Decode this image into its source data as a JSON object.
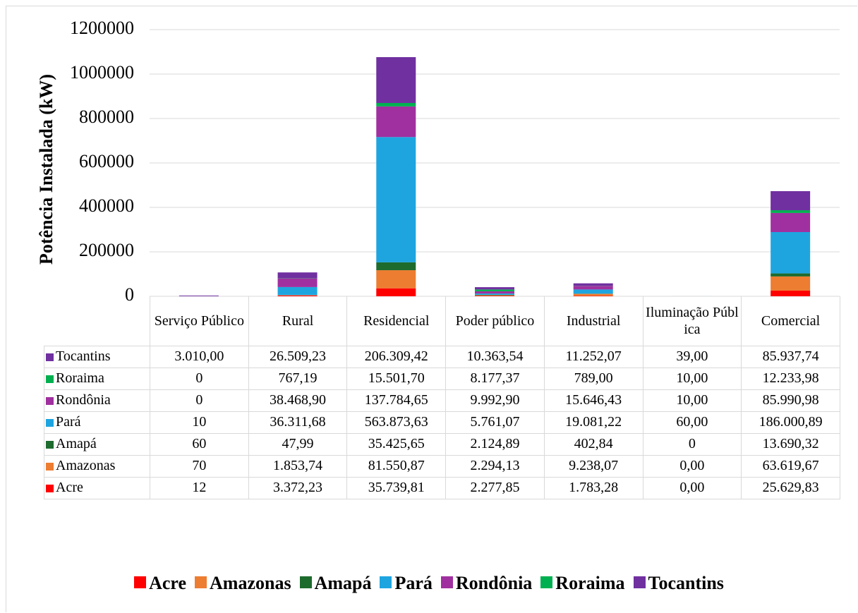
{
  "chart_data": {
    "type": "stacked_bar",
    "y_label": "Potência Instalada (kW)",
    "categories": [
      "Serviço Público",
      "Rural",
      "Residencial",
      "Poder público",
      "Industrial",
      "Iluminação Pública",
      "Comercial"
    ],
    "series": [
      {
        "name": "Acre",
        "color": "#ff0000",
        "values": [
          12,
          3372.23,
          35739.81,
          2277.85,
          1783.28,
          0,
          25629.83
        ],
        "value_labels": [
          "12",
          "3.372,23",
          "35.739,81",
          "2.277,85",
          "1.783,28",
          "0,00",
          "25.629,83"
        ]
      },
      {
        "name": "Amazonas",
        "color": "#ed7d31",
        "values": [
          70,
          1853.74,
          81550.87,
          2294.13,
          9238.07,
          0,
          63619.67
        ],
        "value_labels": [
          "70",
          "1.853,74",
          "81.550,87",
          "2.294,13",
          "9.238,07",
          "0,00",
          "63.619,67"
        ]
      },
      {
        "name": "Amapá",
        "color": "#1e6b2e",
        "values": [
          60,
          47.99,
          35425.65,
          2124.89,
          402.84,
          0,
          13690.32
        ],
        "value_labels": [
          "60",
          "47,99",
          "35.425,65",
          "2.124,89",
          "402,84",
          "0",
          "13.690,32"
        ]
      },
      {
        "name": "Pará",
        "color": "#1ea5e0",
        "values": [
          10,
          36311.68,
          563873.63,
          5761.07,
          19081.22,
          60,
          186000.89
        ],
        "value_labels": [
          "10",
          "36.311,68",
          "563.873,63",
          "5.761,07",
          "19.081,22",
          "60,00",
          "186.000,89"
        ]
      },
      {
        "name": "Rondônia",
        "color": "#a0309f",
        "values": [
          0,
          38468.9,
          137784.65,
          9992.9,
          15646.43,
          10,
          85990.98
        ],
        "value_labels": [
          "0",
          "38.468,90",
          "137.784,65",
          "9.992,90",
          "15.646,43",
          "10,00",
          "85.990,98"
        ]
      },
      {
        "name": "Roraima",
        "color": "#00b050",
        "values": [
          0,
          767.19,
          15501.7,
          8177.37,
          789,
          10,
          12233.98
        ],
        "value_labels": [
          "0",
          "767,19",
          "15.501,70",
          "8.177,37",
          "789,00",
          "10,00",
          "12.233,98"
        ]
      },
      {
        "name": "Tocantins",
        "color": "#7030a0",
        "values": [
          3010,
          26509.23,
          206309.42,
          10363.54,
          11252.07,
          39,
          85937.74
        ],
        "value_labels": [
          "3.010,00",
          "26.509,23",
          "206.309,42",
          "10.363,54",
          "11.252,07",
          "39,00",
          "85.937,74"
        ]
      }
    ],
    "ylim": [
      0,
      1200000
    ],
    "yticks": [
      0,
      200000,
      400000,
      600000,
      800000,
      1000000,
      1200000
    ],
    "grid": true
  }
}
